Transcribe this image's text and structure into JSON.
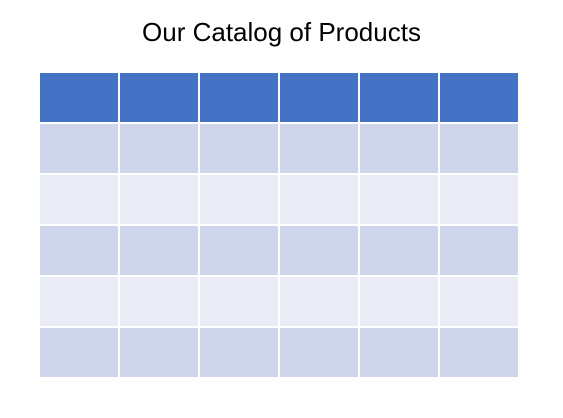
{
  "page": {
    "title": "Our Catalog of Products"
  },
  "table": {
    "header_color": "#4472c4",
    "band_dark_color": "#cfd5ea",
    "band_light_color": "#e9ebf5",
    "headers": [
      "",
      "",
      "",
      "",
      "",
      ""
    ],
    "rows": [
      [
        "",
        "",
        "",
        "",
        "",
        ""
      ],
      [
        "",
        "",
        "",
        "",
        "",
        ""
      ],
      [
        "",
        "",
        "",
        "",
        "",
        ""
      ],
      [
        "",
        "",
        "",
        "",
        "",
        ""
      ],
      [
        "",
        "",
        "",
        "",
        "",
        ""
      ]
    ]
  }
}
